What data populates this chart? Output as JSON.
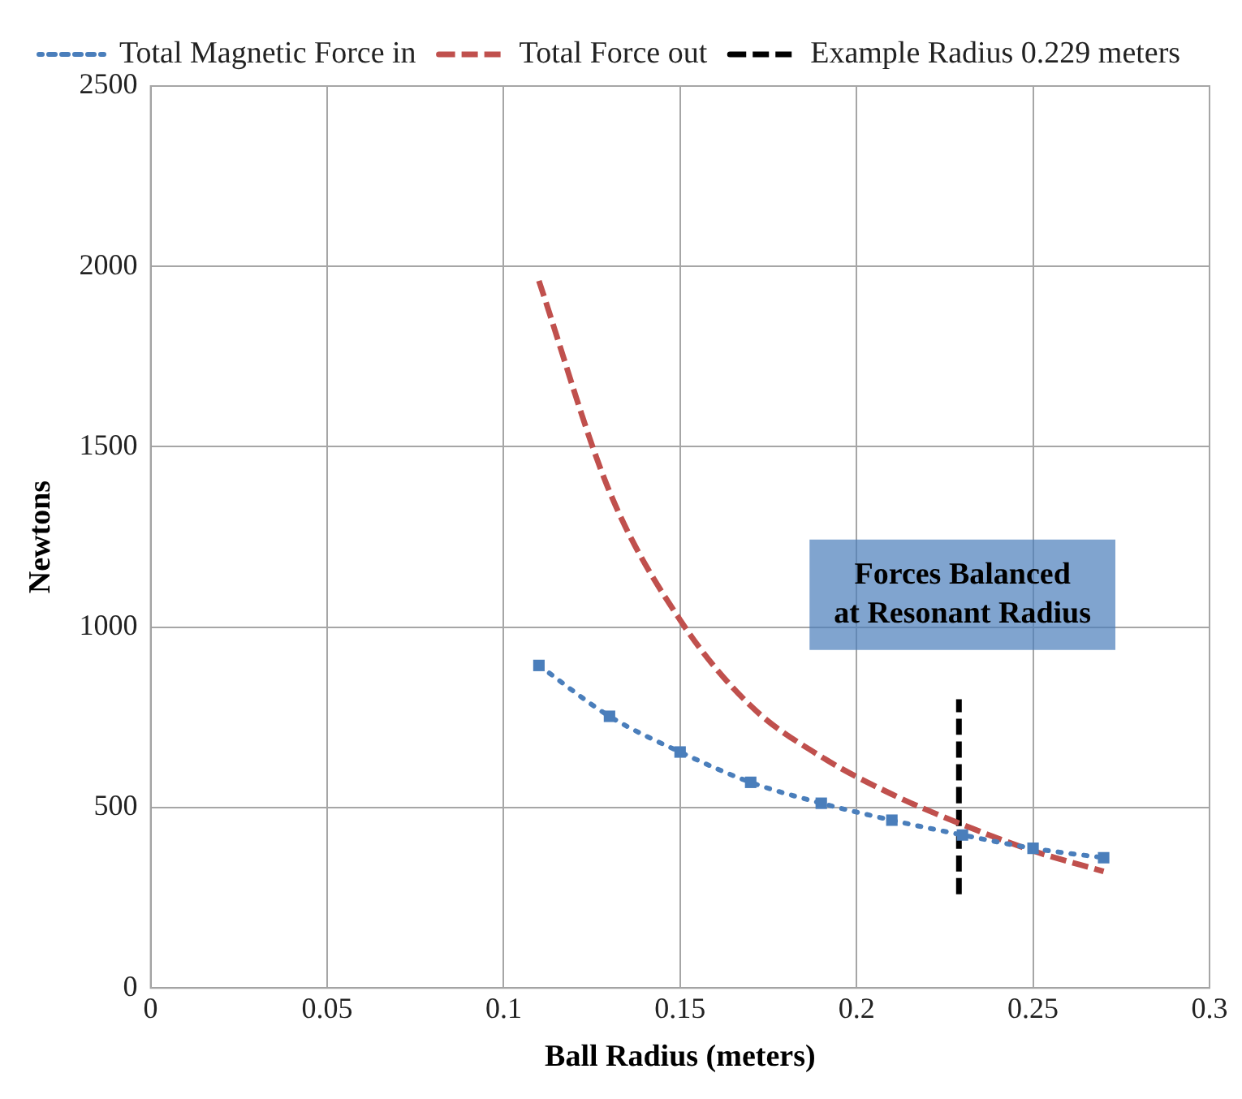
{
  "chart_data": {
    "type": "line",
    "xlabel": "Ball Radius (meters)",
    "ylabel": "Newtons",
    "x": [
      0.11,
      0.13,
      0.15,
      0.17,
      0.19,
      0.21,
      0.23,
      0.25,
      0.27
    ],
    "series": [
      {
        "name": "Total Magnetic Force in",
        "color": "#4a7ebb",
        "values": [
          894,
          753,
          654,
          570,
          512,
          465,
          424,
          387,
          361
        ],
        "marker": "square",
        "line_style": "dotted"
      },
      {
        "name": "Total Force out",
        "color": "#c0504d",
        "values": [
          1960,
          1376,
          1020,
          782,
          641,
          537,
          453,
          380,
          323
        ],
        "marker": "none",
        "line_style": "dashed"
      },
      {
        "name": "Example Radius 0.229 meters",
        "color": "#000000",
        "x": [
          0.229,
          0.229
        ],
        "values": [
          260,
          800
        ],
        "marker": "none",
        "line_style": "dashed"
      }
    ],
    "xlim": [
      0,
      0.3
    ],
    "xticks": [
      0,
      0.05,
      0.1,
      0.15,
      0.2,
      0.25,
      0.3
    ],
    "ylim": [
      0,
      2500
    ],
    "yticks": [
      0,
      500,
      1000,
      1500,
      2000,
      2500
    ],
    "grid": true,
    "legend": "top",
    "annotations": [
      "Forces Balanced\nat Resonant Radius"
    ]
  }
}
